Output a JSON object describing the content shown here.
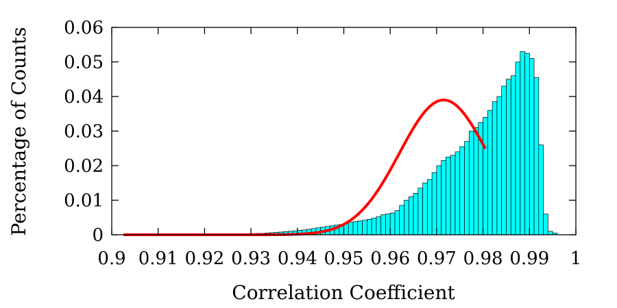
{
  "chart_data": {
    "type": "bar",
    "xlabel": "Correlation Coefficient",
    "ylabel": "Percentage of Counts",
    "xlim": [
      0.9,
      1.0
    ],
    "ylim": [
      0,
      0.06
    ],
    "xticks": [
      "0.9",
      "0.91",
      "0.92",
      "0.93",
      "0.94",
      "0.95",
      "0.96",
      "0.97",
      "0.98",
      "0.99",
      "1"
    ],
    "yticks": [
      "0",
      "0.01",
      "0.02",
      "0.03",
      "0.04",
      "0.05",
      "0.06"
    ],
    "grid": false,
    "bin_width": 0.001,
    "bin_start": 0.93,
    "values": [
      0.0003,
      0.0004,
      0.0004,
      0.0005,
      0.0006,
      0.0007,
      0.0008,
      0.0009,
      0.001,
      0.0011,
      0.0013,
      0.0014,
      0.0016,
      0.0018,
      0.002,
      0.0022,
      0.0024,
      0.0026,
      0.0028,
      0.003,
      0.0033,
      0.0036,
      0.0038,
      0.004,
      0.0042,
      0.0045,
      0.0048,
      0.0052,
      0.0058,
      0.006,
      0.0063,
      0.007,
      0.0085,
      0.01,
      0.011,
      0.012,
      0.0135,
      0.015,
      0.016,
      0.018,
      0.02,
      0.0215,
      0.0225,
      0.023,
      0.024,
      0.0255,
      0.027,
      0.03,
      0.031,
      0.0325,
      0.034,
      0.036,
      0.0385,
      0.04,
      0.043,
      0.045,
      0.046,
      0.05,
      0.053,
      0.0525,
      0.051,
      0.0455,
      0.026,
      0.006,
      0.001,
      0.0005
    ],
    "bar_color": "#00ffff",
    "bar_edge_color": "#000000",
    "fit_curve": {
      "type": "gaussian",
      "color": "#ff0000",
      "mean": 0.9715,
      "sigma": 0.0095,
      "peak": 0.039,
      "x_range": [
        0.9025,
        0.9805
      ]
    }
  }
}
